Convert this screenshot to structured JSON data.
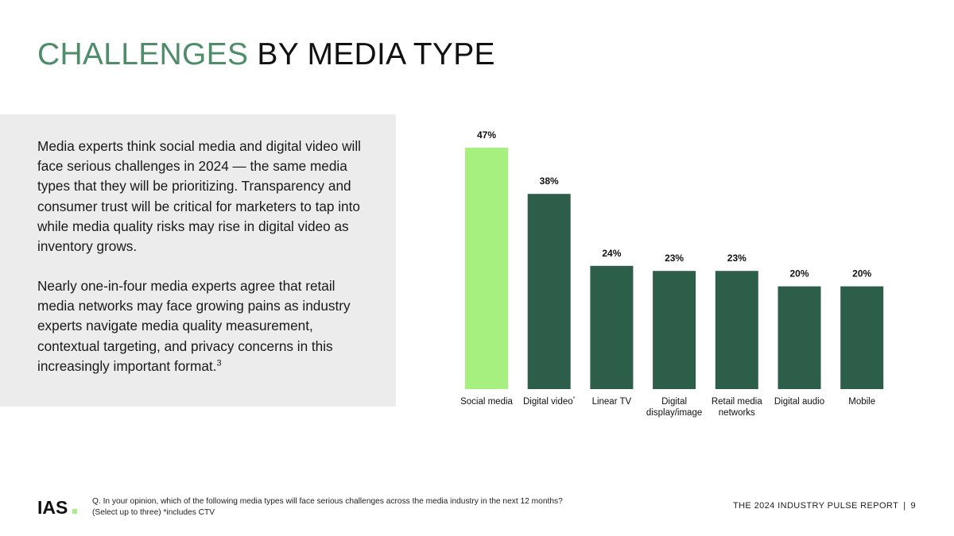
{
  "title": {
    "accent": "CHALLENGES",
    "rest": "BY MEDIA TYPE"
  },
  "body": {
    "paragraph1": "Media experts think social media and digital video will face serious challenges in 2024 — the same media types that they will be prioritizing. Transparency and consumer trust will be critical for marketers to tap into while media quality risks may rise in digital video as inventory grows.",
    "paragraph2": "Nearly one-in-four media experts agree that retail media networks may face growing pains as industry experts navigate media quality measurement, contextual targeting, and privacy concerns in this increasingly important format.",
    "paragraph2_superscript": "3"
  },
  "chart_data": {
    "type": "bar",
    "categories": [
      "Social media",
      "Digital video",
      "Linear TV",
      "Digital display/image",
      "Retail media networks",
      "Digital audio",
      "Mobile"
    ],
    "category_lines": [
      [
        "Social media"
      ],
      [
        "Digital video"
      ],
      [
        "Linear TV"
      ],
      [
        "Digital",
        "display/image"
      ],
      [
        "Retail media",
        "networks"
      ],
      [
        "Digital audio"
      ],
      [
        "Mobile"
      ]
    ],
    "category_superscripts": [
      "",
      "*",
      "",
      "",
      "",
      "",
      ""
    ],
    "values": [
      47,
      38,
      24,
      23,
      23,
      20,
      20
    ],
    "value_labels": [
      "47%",
      "38%",
      "24%",
      "23%",
      "23%",
      "20%",
      "20%"
    ],
    "unit": "%",
    "ylim": [
      0,
      47
    ],
    "title": "",
    "xlabel": "",
    "ylabel": "",
    "colors": {
      "highlight": "#a6f080",
      "default": "#2d5e49"
    },
    "highlight_index": 0
  },
  "footer": {
    "logo_text": "IAS",
    "question": "Q. In your opinion, which of the following media types will face serious challenges across the media industry in the next 12 months?",
    "question_note": "(Select up to three) *includes CTV",
    "report_name": "THE 2024 INDUSTRY PULSE REPORT",
    "separator": "|",
    "page_number": "9"
  }
}
